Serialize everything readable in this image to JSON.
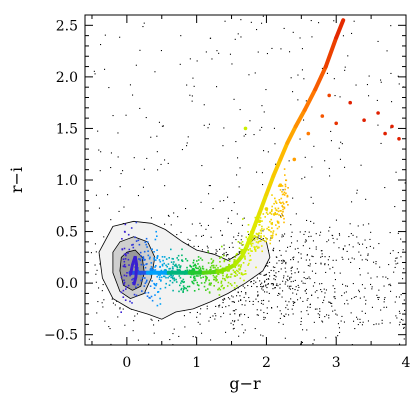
{
  "chart_data": {
    "type": "scatter",
    "xlabel": "g−r",
    "ylabel": "r−i",
    "xlim": [
      -0.6,
      4.0
    ],
    "ylim": [
      -0.6,
      2.6
    ],
    "xticks": [
      0,
      1,
      2,
      3,
      4
    ],
    "xtick_labels": [
      "0",
      "1",
      "2",
      "3",
      "4"
    ],
    "yticks": [
      -0.5,
      0.0,
      0.5,
      1.0,
      1.5,
      2.0,
      2.5
    ],
    "ytick_labels": [
      "−0.5",
      "0.0",
      "0.5",
      "1.0",
      "1.5",
      "2.0",
      "2.5"
    ],
    "grid": false,
    "colors": {
      "field_points": "#000000",
      "contours": "#000000",
      "density_fill": "#9a9a9a",
      "locus_gradient": [
        "#3a1fd0",
        "#00a0ff",
        "#00c040",
        "#7ee000",
        "#d8f000",
        "#ffc000",
        "#ff7000",
        "#e02000"
      ]
    },
    "series": [
      {
        "kind": "colored-locus-points",
        "points": [
          [
            0.05,
            0.1
          ],
          [
            0.15,
            0.12
          ],
          [
            0.25,
            0.1
          ],
          [
            0.35,
            0.13
          ],
          [
            0.45,
            0.1
          ],
          [
            0.55,
            0.12
          ],
          [
            0.65,
            0.11
          ],
          [
            0.75,
            0.12
          ],
          [
            0.85,
            0.1
          ],
          [
            0.95,
            0.13
          ],
          [
            1.05,
            0.12
          ],
          [
            1.15,
            0.1
          ],
          [
            1.25,
            0.11
          ],
          [
            1.35,
            0.12
          ],
          [
            1.45,
            0.15
          ],
          [
            1.55,
            0.2
          ],
          [
            1.65,
            0.3
          ],
          [
            1.75,
            0.4
          ],
          [
            1.8,
            0.5
          ],
          [
            1.9,
            0.6
          ],
          [
            2.0,
            0.72
          ],
          [
            2.2,
            0.95
          ],
          [
            2.4,
            1.2
          ],
          [
            2.6,
            1.45
          ],
          [
            2.8,
            1.62
          ],
          [
            3.0,
            1.55
          ],
          [
            3.2,
            1.75
          ],
          [
            3.4,
            1.58
          ],
          [
            3.6,
            1.65
          ],
          [
            3.8,
            1.52
          ],
          [
            3.9,
            1.4
          ],
          [
            2.5,
            1.62
          ],
          [
            1.7,
            1.5
          ],
          [
            2.9,
            1.82
          ],
          [
            3.7,
            1.45
          ]
        ]
      },
      {
        "kind": "stellar-locus-track",
        "points": [
          [
            0.05,
            0.1
          ],
          [
            0.3,
            0.1
          ],
          [
            0.6,
            0.1
          ],
          [
            0.9,
            0.1
          ],
          [
            1.1,
            0.1
          ],
          [
            1.3,
            0.11
          ],
          [
            1.45,
            0.14
          ],
          [
            1.55,
            0.18
          ],
          [
            1.65,
            0.26
          ],
          [
            1.72,
            0.36
          ],
          [
            1.8,
            0.5
          ],
          [
            1.9,
            0.68
          ],
          [
            2.0,
            0.86
          ],
          [
            2.1,
            1.04
          ],
          [
            2.2,
            1.2
          ],
          [
            2.3,
            1.36
          ],
          [
            2.42,
            1.52
          ],
          [
            2.55,
            1.68
          ],
          [
            2.7,
            1.88
          ],
          [
            2.85,
            2.1
          ],
          [
            3.0,
            2.38
          ],
          [
            3.1,
            2.55
          ]
        ]
      }
    ],
    "contours": [
      {
        "level": "outer",
        "points": [
          [
            -0.2,
            0.55
          ],
          [
            0.1,
            0.6
          ],
          [
            0.35,
            0.58
          ],
          [
            0.55,
            0.52
          ],
          [
            0.8,
            0.4
          ],
          [
            1.0,
            0.32
          ],
          [
            1.25,
            0.28
          ],
          [
            1.45,
            0.22
          ],
          [
            1.65,
            0.3
          ],
          [
            1.85,
            0.45
          ],
          [
            2.0,
            0.4
          ],
          [
            2.05,
            0.25
          ],
          [
            1.95,
            0.12
          ],
          [
            1.7,
            0.0
          ],
          [
            1.45,
            -0.1
          ],
          [
            1.2,
            -0.18
          ],
          [
            0.95,
            -0.25
          ],
          [
            0.7,
            -0.28
          ],
          [
            0.5,
            -0.35
          ],
          [
            0.3,
            -0.3
          ],
          [
            0.05,
            -0.25
          ],
          [
            -0.2,
            -0.15
          ],
          [
            -0.35,
            0.05
          ],
          [
            -0.4,
            0.3
          ]
        ]
      },
      {
        "level": "middle",
        "points": [
          [
            -0.1,
            0.4
          ],
          [
            0.1,
            0.45
          ],
          [
            0.3,
            0.4
          ],
          [
            0.4,
            0.25
          ],
          [
            0.35,
            0.05
          ],
          [
            0.25,
            -0.1
          ],
          [
            0.05,
            -0.15
          ],
          [
            -0.1,
            -0.08
          ],
          [
            -0.2,
            0.1
          ],
          [
            -0.2,
            0.3
          ]
        ]
      },
      {
        "level": "inner",
        "points": [
          [
            0.0,
            0.3
          ],
          [
            0.12,
            0.32
          ],
          [
            0.22,
            0.25
          ],
          [
            0.25,
            0.1
          ],
          [
            0.2,
            -0.03
          ],
          [
            0.08,
            -0.07
          ],
          [
            -0.05,
            -0.02
          ],
          [
            -0.1,
            0.12
          ],
          [
            -0.08,
            0.25
          ]
        ]
      }
    ]
  }
}
